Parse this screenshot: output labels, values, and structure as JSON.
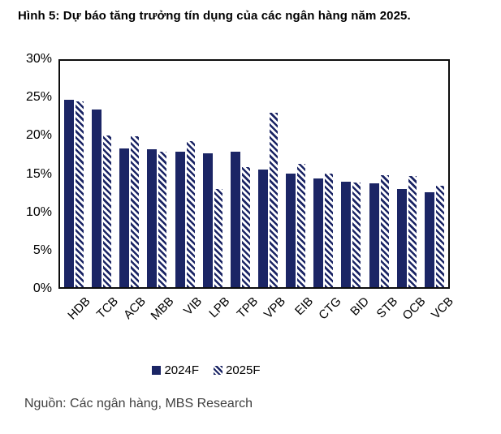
{
  "title": "Hình 5: Dự báo tăng trưởng tín dụng của các ngân hàng năm 2025.",
  "source": "Nguồn: Các ngân hàng, MBS Research",
  "colors": {
    "navy": "#1B2565",
    "hatch_background": "#FFFFFF",
    "axis": "#0D0D0D",
    "source_text": "#3F3F3F"
  },
  "legend": {
    "items": [
      {
        "label": "2024F",
        "swatch": "solid-navy-square"
      },
      {
        "label": "2025F",
        "swatch": "hatched-navy-square"
      }
    ],
    "position": "bottom-center"
  },
  "chart_data": {
    "type": "bar",
    "title": "Hình 5: Dự báo tăng trưởng tín dụng của các ngân hàng năm 2025.",
    "categories": [
      "HDB",
      "TCB",
      "ACB",
      "MBB",
      "VIB",
      "LPB",
      "TPB",
      "VPB",
      "EIB",
      "CTG",
      "BID",
      "STB",
      "OCB",
      "VCB"
    ],
    "series": [
      {
        "name": "2024F",
        "style": "solid",
        "values": [
          24.8,
          23.5,
          18.4,
          18.3,
          18.0,
          17.7,
          18.0,
          15.6,
          15.1,
          14.4,
          14.0,
          13.8,
          13.0,
          12.6
        ]
      },
      {
        "name": "2025F",
        "style": "hatched",
        "values": [
          24.6,
          20.1,
          20.0,
          18.0,
          19.4,
          13.0,
          15.9,
          23.1,
          16.3,
          15.1,
          13.9,
          14.8,
          14.7,
          13.4
        ]
      }
    ],
    "xlabel": "",
    "ylabel": "",
    "ylim": [
      0,
      30
    ],
    "ytick_step": 5,
    "yticks": [
      "30%",
      "25%",
      "20%",
      "15%",
      "10%",
      "5%",
      "0%"
    ],
    "unit": "%",
    "grid": false,
    "legend_position": "bottom",
    "x_tick_rotation_deg": 45
  }
}
